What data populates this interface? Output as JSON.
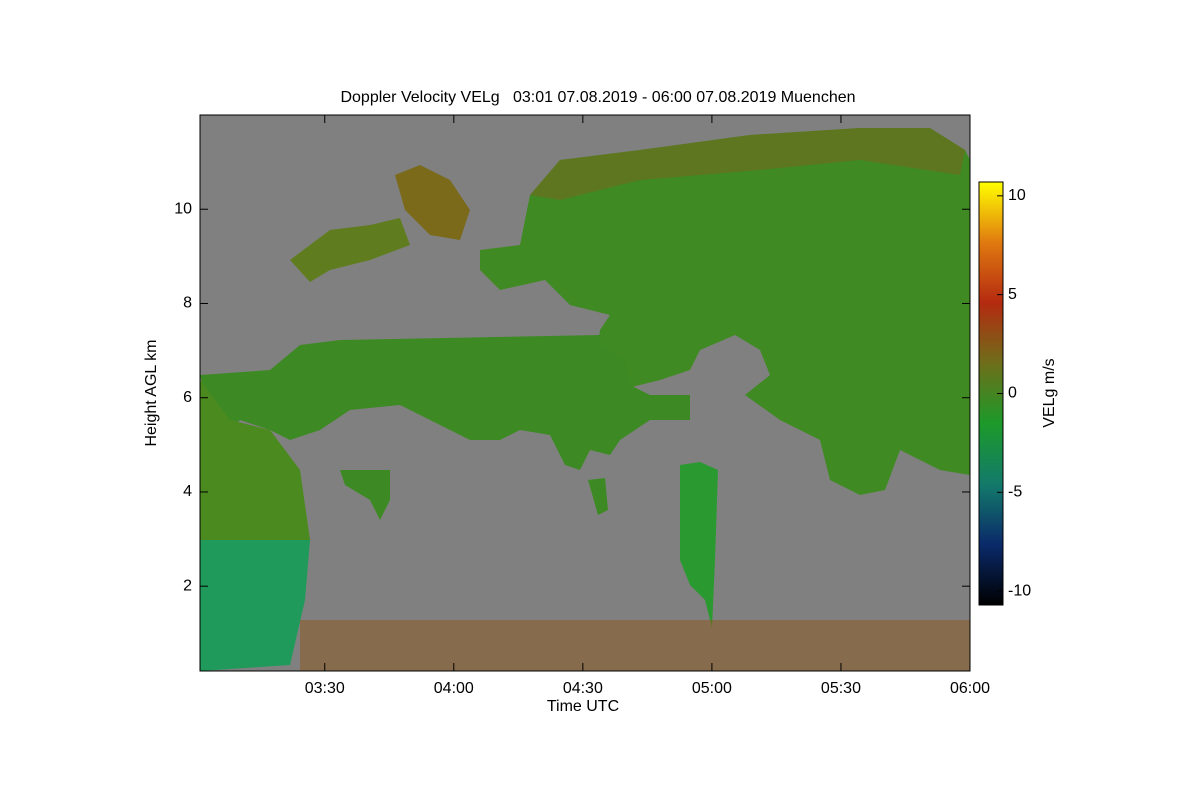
{
  "chart_data": {
    "type": "heatmap",
    "title": "Doppler Velocity VELg   03:01 07.08.2019 - 06:00 07.08.2019 Muenchen",
    "x_label": "Time UTC",
    "y_label": "Height AGL km",
    "xlim": [
      181,
      360
    ],
    "xticks": [
      {
        "value": 210,
        "label": "03:30"
      },
      {
        "value": 240,
        "label": "04:00"
      },
      {
        "value": 270,
        "label": "04:30"
      },
      {
        "value": 300,
        "label": "05:00"
      },
      {
        "value": 330,
        "label": "05:30"
      },
      {
        "value": 360,
        "label": "06:00"
      }
    ],
    "ylim": [
      0.2,
      12
    ],
    "yticks": [
      2,
      4,
      6,
      8,
      10
    ],
    "colorbar": {
      "label": "VELg m/s",
      "lim": [
        -10.7,
        10.7
      ],
      "ticks": [
        -10,
        -5,
        0,
        5,
        10
      ],
      "colors": [
        "#000000",
        "#0a2a6a",
        "#137a6a",
        "#1c9a2a",
        "#6e6e1a",
        "#b42a10",
        "#e07a10",
        "#ffff00"
      ]
    }
  }
}
